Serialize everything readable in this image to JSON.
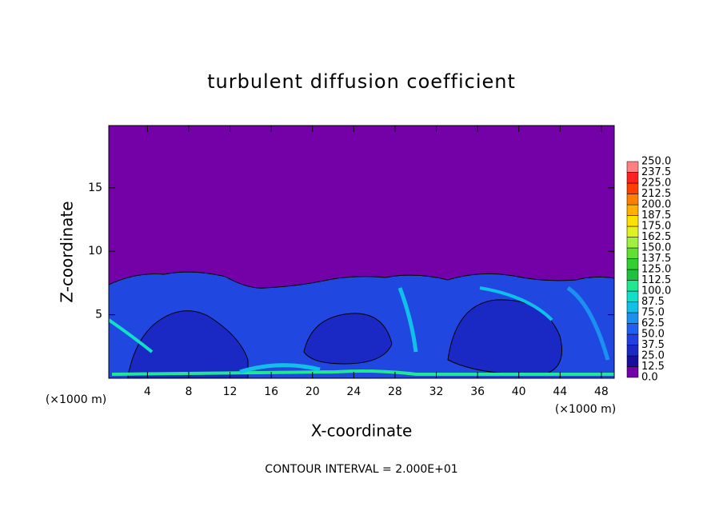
{
  "chart_data": {
    "type": "contour",
    "title": "turbulent diffusion coefficient",
    "xlabel": "X-coordinate",
    "ylabel": "Z-coordinate",
    "x_unit": "(×1000 m)",
    "y_unit": "(×1000 m)",
    "footnote": "CONTOUR INTERVAL = 2.000E+01",
    "xlim": [
      0.25,
      49.25
    ],
    "ylim": [
      0,
      19.9
    ],
    "xticks": [
      4,
      8,
      12,
      16,
      20,
      24,
      28,
      32,
      36,
      40,
      44,
      48
    ],
    "yticks": [
      5,
      10,
      15
    ],
    "colorbar": {
      "levels": [
        {
          "value": 0,
          "label": "0.0"
        },
        12.5,
        {
          "value": 25,
          "label": "25.0"
        },
        37.5,
        {
          "value": 50,
          "label": "50.0"
        },
        62.5,
        {
          "value": 75,
          "label": "75.0"
        },
        87.5,
        {
          "value": 100,
          "label": "100.0"
        },
        112.5,
        {
          "value": 125,
          "label": "125.0"
        },
        137.5,
        {
          "value": 150,
          "label": "150.0"
        },
        162.5,
        {
          "value": 175,
          "label": "175.0"
        },
        187.5,
        {
          "value": 200,
          "label": "200.0"
        },
        212.5,
        {
          "value": 225,
          "label": "225.0"
        },
        237.5,
        {
          "value": 250,
          "label": "250.0"
        }
      ],
      "colors": [
        "#7400a8",
        "#1a0c9c",
        "#1a28c4",
        "#2040e0",
        "#2060f0",
        "#1a90f0",
        "#10c0e8",
        "#10e0c8",
        "#20e890",
        "#20c040",
        "#30d030",
        "#60e030",
        "#a0f040",
        "#e0f020",
        "#ffe000",
        "#ffb000",
        "#ff8000",
        "#ff4000",
        "#ff2020",
        "#ff8080"
      ]
    }
  }
}
